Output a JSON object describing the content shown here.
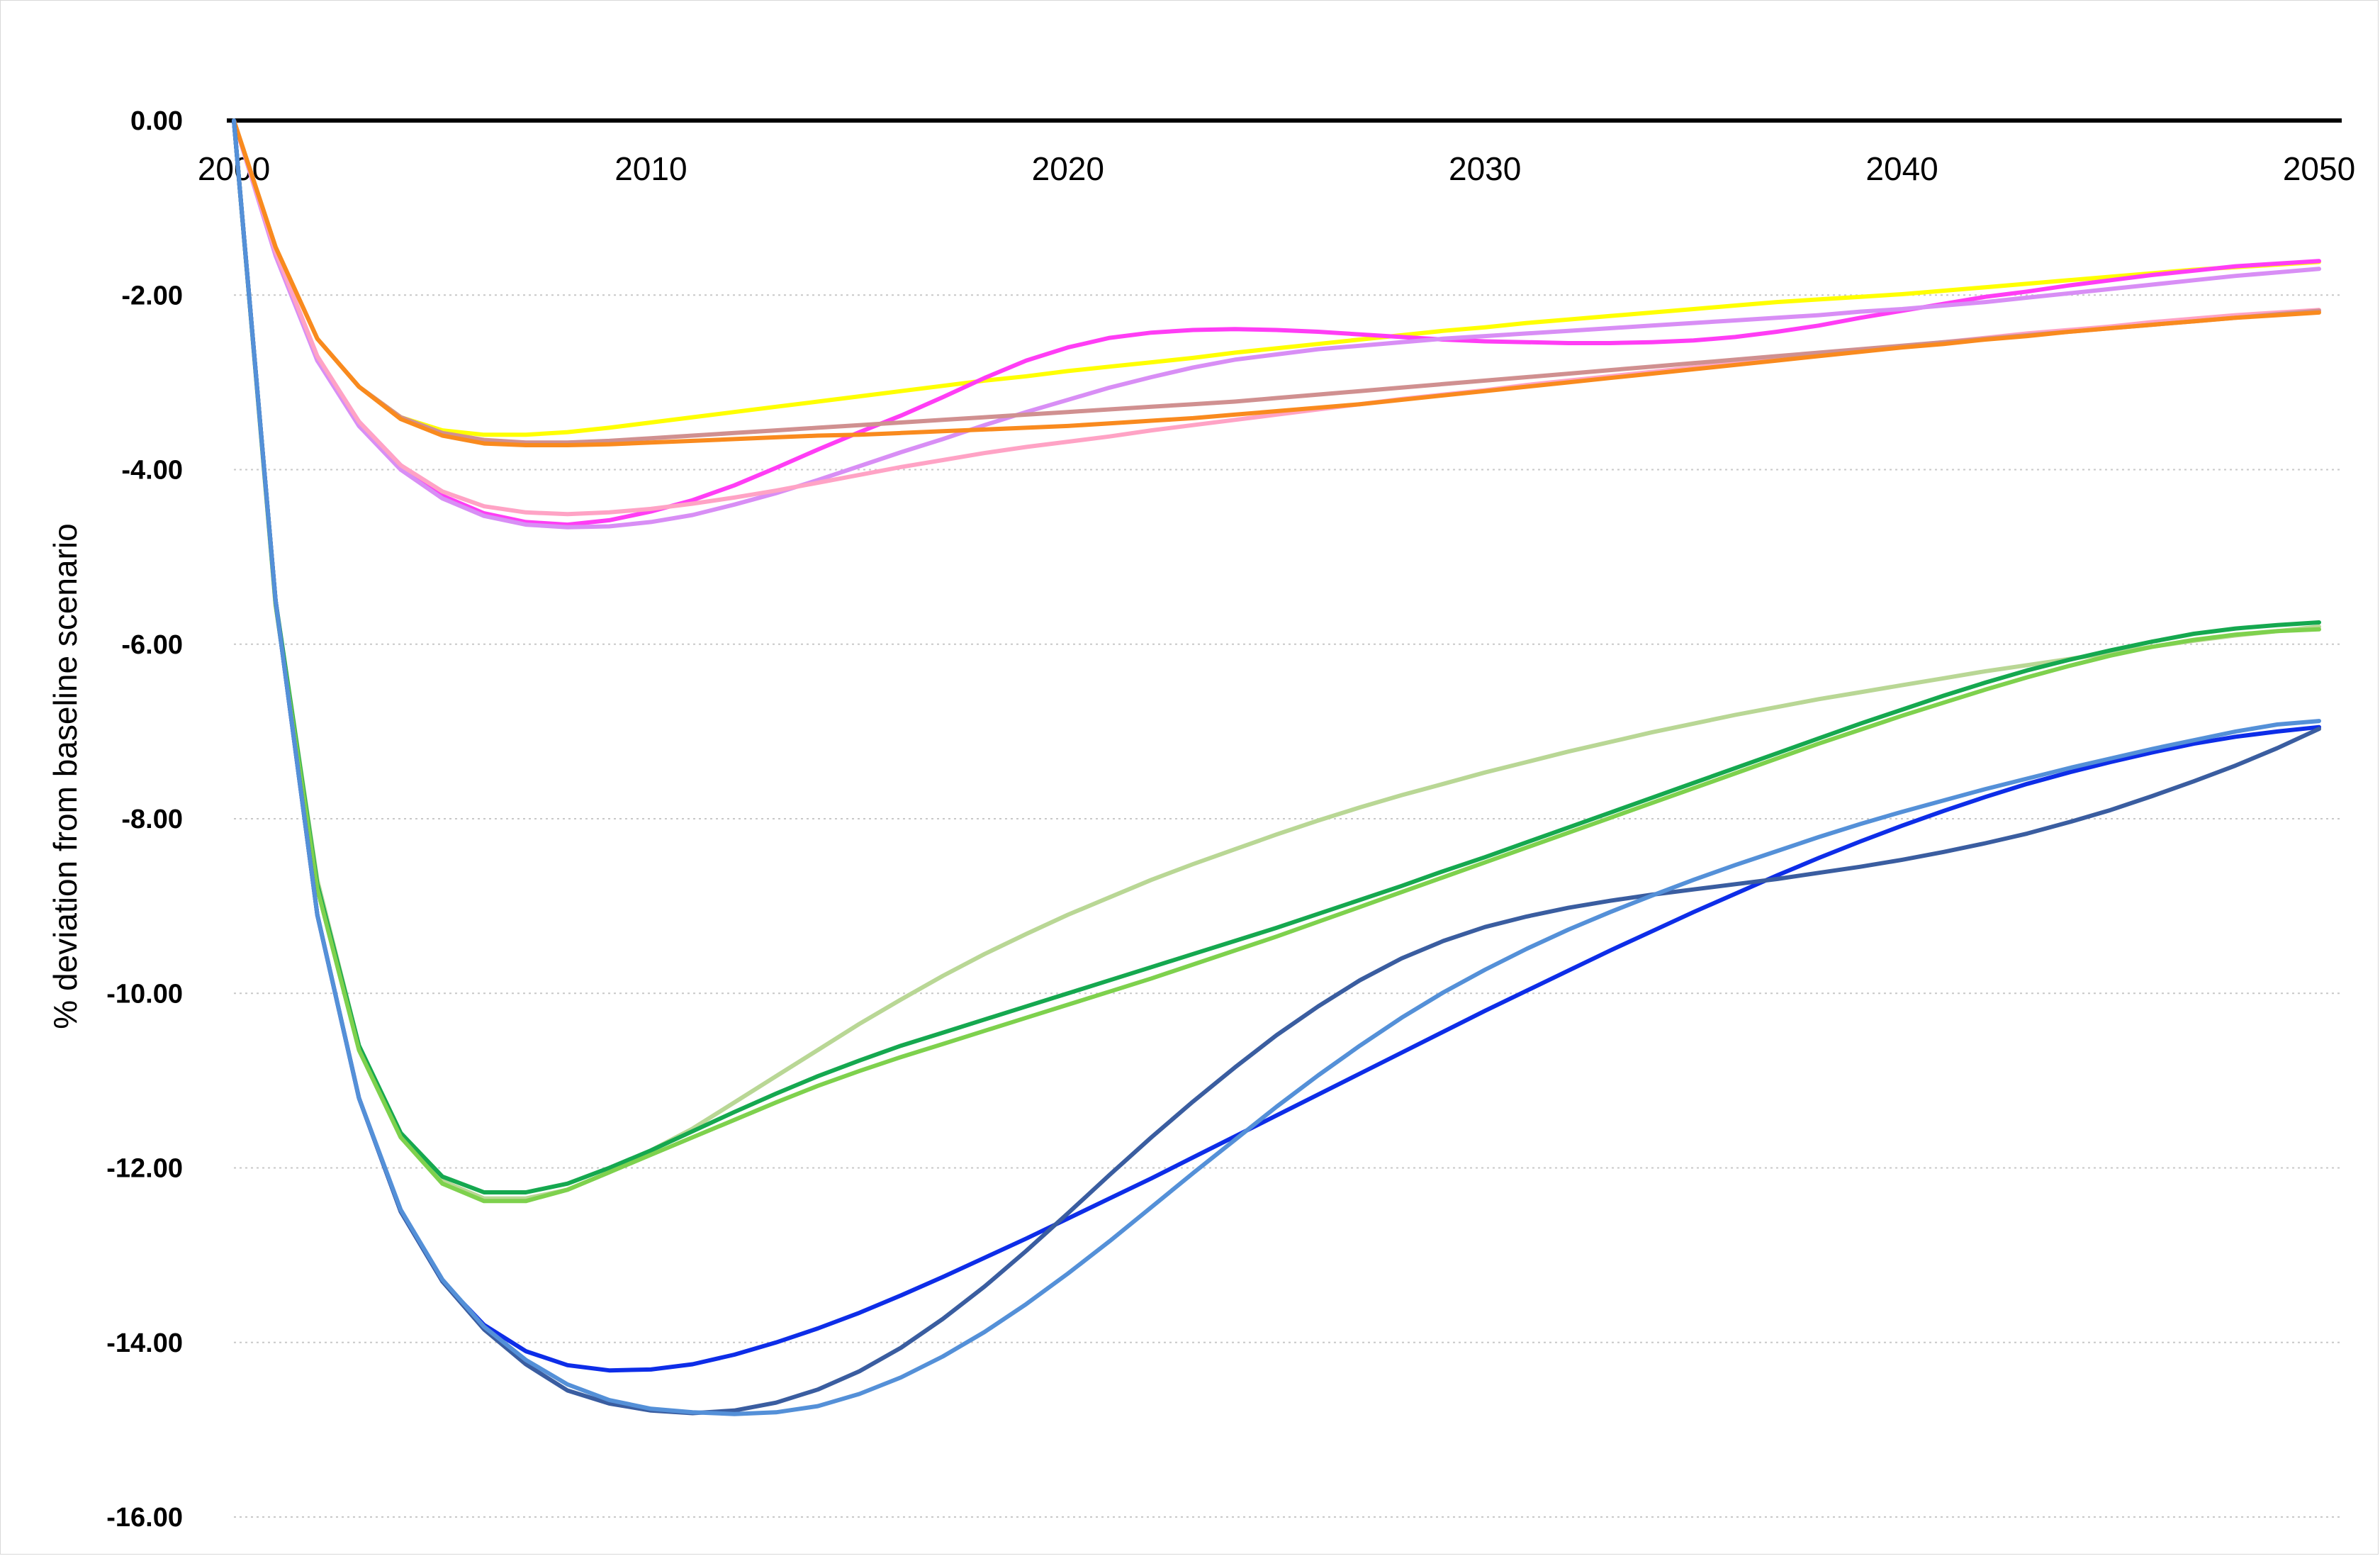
{
  "chart_data": {
    "type": "line",
    "title": "",
    "xlabel": "",
    "ylabel": "% deviation from baseline scenario",
    "xlim": [
      2000,
      2050
    ],
    "ylim": [
      -16,
      0
    ],
    "x_ticks": [
      "2000",
      "2010",
      "2020",
      "2030",
      "2040",
      "2050"
    ],
    "y_ticks": [
      "0.00",
      "-2.00",
      "-4.00",
      "-6.00",
      "-8.00",
      "-10.00",
      "-12.00",
      "-14.00",
      "-16.00"
    ],
    "grid": "horizontal dotted",
    "legend": "none",
    "x": [
      2000,
      2001,
      2002,
      2003,
      2004,
      2005,
      2006,
      2007,
      2008,
      2009,
      2010,
      2011,
      2012,
      2013,
      2014,
      2015,
      2016,
      2017,
      2018,
      2019,
      2020,
      2021,
      2022,
      2023,
      2024,
      2025,
      2026,
      2027,
      2028,
      2029,
      2030,
      2031,
      2032,
      2033,
      2034,
      2035,
      2036,
      2037,
      2038,
      2039,
      2040,
      2041,
      2042,
      2043,
      2044,
      2045,
      2046,
      2047,
      2048,
      2049,
      2050
    ],
    "series": [
      {
        "color": "#FFFF00",
        "values": [
          0.0,
          -1.45,
          -2.5,
          -3.05,
          -3.4,
          -3.55,
          -3.6,
          -3.6,
          -3.57,
          -3.52,
          -3.46,
          -3.4,
          -3.34,
          -3.28,
          -3.22,
          -3.16,
          -3.1,
          -3.04,
          -2.98,
          -2.93,
          -2.87,
          -2.82,
          -2.77,
          -2.72,
          -2.66,
          -2.61,
          -2.56,
          -2.51,
          -2.46,
          -2.41,
          -2.37,
          -2.32,
          -2.28,
          -2.24,
          -2.2,
          -2.16,
          -2.12,
          -2.08,
          -2.05,
          -2.02,
          -1.99,
          -1.95,
          -1.91,
          -1.87,
          -1.83,
          -1.79,
          -1.75,
          -1.71,
          -1.68,
          -1.65,
          -1.62
        ]
      },
      {
        "color": "#FF3DF5",
        "values": [
          0.0,
          -1.5,
          -2.75,
          -3.45,
          -3.95,
          -4.3,
          -4.5,
          -4.6,
          -4.63,
          -4.58,
          -4.48,
          -4.35,
          -4.18,
          -3.98,
          -3.77,
          -3.57,
          -3.38,
          -3.17,
          -2.95,
          -2.75,
          -2.6,
          -2.49,
          -2.43,
          -2.4,
          -2.39,
          -2.4,
          -2.42,
          -2.45,
          -2.48,
          -2.51,
          -2.53,
          -2.54,
          -2.55,
          -2.55,
          -2.54,
          -2.52,
          -2.48,
          -2.42,
          -2.35,
          -2.26,
          -2.18,
          -2.1,
          -2.02,
          -1.96,
          -1.89,
          -1.83,
          -1.77,
          -1.72,
          -1.67,
          -1.64,
          -1.61
        ]
      },
      {
        "color": "#D88EF5",
        "values": [
          0.0,
          -1.55,
          -2.75,
          -3.5,
          -4.0,
          -4.33,
          -4.53,
          -4.63,
          -4.66,
          -4.65,
          -4.6,
          -4.52,
          -4.4,
          -4.27,
          -4.12,
          -3.96,
          -3.8,
          -3.65,
          -3.49,
          -3.34,
          -3.2,
          -3.06,
          -2.94,
          -2.83,
          -2.74,
          -2.68,
          -2.62,
          -2.58,
          -2.54,
          -2.5,
          -2.47,
          -2.44,
          -2.41,
          -2.38,
          -2.35,
          -2.32,
          -2.29,
          -2.26,
          -2.23,
          -2.19,
          -2.16,
          -2.12,
          -2.08,
          -2.03,
          -1.98,
          -1.93,
          -1.88,
          -1.83,
          -1.78,
          -1.74,
          -1.7
        ]
      },
      {
        "color": "#FFA3C5",
        "values": [
          0.0,
          -1.5,
          -2.7,
          -3.45,
          -3.95,
          -4.25,
          -4.42,
          -4.49,
          -4.51,
          -4.49,
          -4.45,
          -4.39,
          -4.32,
          -4.24,
          -4.15,
          -4.06,
          -3.97,
          -3.89,
          -3.81,
          -3.74,
          -3.68,
          -3.62,
          -3.55,
          -3.49,
          -3.43,
          -3.37,
          -3.31,
          -3.25,
          -3.19,
          -3.14,
          -3.09,
          -3.03,
          -2.98,
          -2.93,
          -2.88,
          -2.83,
          -2.78,
          -2.73,
          -2.68,
          -2.63,
          -2.59,
          -2.54,
          -2.49,
          -2.44,
          -2.4,
          -2.36,
          -2.31,
          -2.27,
          -2.23,
          -2.2,
          -2.17
        ]
      },
      {
        "color": "#D09090",
        "values": [
          0.0,
          -1.45,
          -2.5,
          -3.05,
          -3.4,
          -3.58,
          -3.66,
          -3.69,
          -3.69,
          -3.67,
          -3.64,
          -3.61,
          -3.58,
          -3.55,
          -3.52,
          -3.49,
          -3.46,
          -3.43,
          -3.4,
          -3.37,
          -3.34,
          -3.31,
          -3.28,
          -3.25,
          -3.22,
          -3.18,
          -3.14,
          -3.1,
          -3.06,
          -3.02,
          -2.98,
          -2.94,
          -2.9,
          -2.86,
          -2.82,
          -2.78,
          -2.74,
          -2.7,
          -2.66,
          -2.62,
          -2.58,
          -2.54,
          -2.5,
          -2.46,
          -2.42,
          -2.38,
          -2.34,
          -2.3,
          -2.26,
          -2.22,
          -2.18
        ]
      },
      {
        "color": "#F98A1E",
        "values": [
          0.0,
          -1.45,
          -2.5,
          -3.05,
          -3.42,
          -3.61,
          -3.7,
          -3.72,
          -3.72,
          -3.71,
          -3.69,
          -3.67,
          -3.65,
          -3.63,
          -3.61,
          -3.6,
          -3.58,
          -3.56,
          -3.54,
          -3.52,
          -3.5,
          -3.47,
          -3.44,
          -3.41,
          -3.37,
          -3.33,
          -3.29,
          -3.25,
          -3.2,
          -3.15,
          -3.1,
          -3.05,
          -3.0,
          -2.95,
          -2.9,
          -2.85,
          -2.8,
          -2.75,
          -2.7,
          -2.65,
          -2.6,
          -2.56,
          -2.51,
          -2.47,
          -2.42,
          -2.38,
          -2.34,
          -2.3,
          -2.26,
          -2.23,
          -2.2
        ]
      },
      {
        "color": "#B9D795",
        "values": [
          0.0,
          -5.5,
          -8.7,
          -10.6,
          -11.6,
          -12.15,
          -12.35,
          -12.35,
          -12.25,
          -12.05,
          -11.8,
          -11.55,
          -11.25,
          -10.95,
          -10.65,
          -10.35,
          -10.07,
          -9.8,
          -9.55,
          -9.32,
          -9.1,
          -8.9,
          -8.7,
          -8.52,
          -8.35,
          -8.18,
          -8.02,
          -7.87,
          -7.73,
          -7.6,
          -7.47,
          -7.35,
          -7.23,
          -7.12,
          -7.01,
          -6.91,
          -6.81,
          -6.72,
          -6.63,
          -6.55,
          -6.47,
          -6.39,
          -6.31,
          -6.24,
          -6.17,
          -6.1,
          -6.03,
          -5.96,
          -5.9,
          -5.85,
          -5.8
        ]
      },
      {
        "color": "#15A84F",
        "values": [
          0.0,
          -5.5,
          -8.75,
          -10.6,
          -11.6,
          -12.1,
          -12.28,
          -12.28,
          -12.18,
          -12.0,
          -11.8,
          -11.58,
          -11.36,
          -11.15,
          -10.95,
          -10.77,
          -10.6,
          -10.45,
          -10.3,
          -10.15,
          -10.0,
          -9.85,
          -9.7,
          -9.55,
          -9.4,
          -9.25,
          -9.09,
          -8.93,
          -8.77,
          -8.6,
          -8.44,
          -8.27,
          -8.1,
          -7.93,
          -7.76,
          -7.59,
          -7.42,
          -7.25,
          -7.08,
          -6.91,
          -6.75,
          -6.59,
          -6.44,
          -6.3,
          -6.18,
          -6.07,
          -5.97,
          -5.88,
          -5.82,
          -5.78,
          -5.75
        ]
      },
      {
        "color": "#7ED14D",
        "values": [
          0.0,
          -5.55,
          -8.8,
          -10.65,
          -11.65,
          -12.18,
          -12.38,
          -12.38,
          -12.25,
          -12.05,
          -11.85,
          -11.65,
          -11.45,
          -11.25,
          -11.06,
          -10.89,
          -10.73,
          -10.58,
          -10.43,
          -10.28,
          -10.13,
          -9.98,
          -9.83,
          -9.67,
          -9.51,
          -9.35,
          -9.18,
          -9.01,
          -8.84,
          -8.67,
          -8.5,
          -8.33,
          -8.16,
          -7.99,
          -7.82,
          -7.65,
          -7.48,
          -7.31,
          -7.14,
          -6.98,
          -6.82,
          -6.67,
          -6.52,
          -6.38,
          -6.25,
          -6.13,
          -6.03,
          -5.95,
          -5.89,
          -5.85,
          -5.83
        ]
      },
      {
        "color": "#0D2DE8",
        "values": [
          0.0,
          -5.5,
          -9.1,
          -11.2,
          -12.5,
          -13.3,
          -13.8,
          -14.1,
          -14.26,
          -14.32,
          -14.31,
          -14.25,
          -14.14,
          -14.0,
          -13.84,
          -13.66,
          -13.46,
          -13.25,
          -13.03,
          -12.81,
          -12.58,
          -12.35,
          -12.12,
          -11.88,
          -11.64,
          -11.4,
          -11.16,
          -10.92,
          -10.68,
          -10.44,
          -10.2,
          -9.97,
          -9.74,
          -9.51,
          -9.29,
          -9.07,
          -8.86,
          -8.65,
          -8.45,
          -8.26,
          -8.08,
          -7.91,
          -7.75,
          -7.6,
          -7.47,
          -7.35,
          -7.24,
          -7.14,
          -7.06,
          -7.0,
          -6.95
        ]
      },
      {
        "color": "#3A5DA0",
        "values": [
          0.0,
          -5.5,
          -9.1,
          -11.2,
          -12.5,
          -13.3,
          -13.85,
          -14.25,
          -14.55,
          -14.7,
          -14.78,
          -14.81,
          -14.78,
          -14.69,
          -14.54,
          -14.33,
          -14.06,
          -13.73,
          -13.36,
          -12.95,
          -12.52,
          -12.08,
          -11.65,
          -11.24,
          -10.85,
          -10.48,
          -10.15,
          -9.85,
          -9.6,
          -9.4,
          -9.24,
          -9.12,
          -9.02,
          -8.94,
          -8.87,
          -8.81,
          -8.75,
          -8.69,
          -8.62,
          -8.55,
          -8.47,
          -8.38,
          -8.28,
          -8.17,
          -8.04,
          -7.9,
          -7.74,
          -7.57,
          -7.39,
          -7.19,
          -6.97
        ]
      },
      {
        "color": "#5490D8",
        "values": [
          0.0,
          -5.5,
          -9.1,
          -11.2,
          -12.48,
          -13.28,
          -13.82,
          -14.2,
          -14.48,
          -14.66,
          -14.76,
          -14.8,
          -14.82,
          -14.8,
          -14.73,
          -14.59,
          -14.4,
          -14.16,
          -13.88,
          -13.56,
          -13.21,
          -12.84,
          -12.45,
          -12.06,
          -11.68,
          -11.3,
          -10.94,
          -10.6,
          -10.28,
          -9.99,
          -9.73,
          -9.49,
          -9.27,
          -9.07,
          -8.88,
          -8.7,
          -8.53,
          -8.37,
          -8.21,
          -8.06,
          -7.92,
          -7.79,
          -7.66,
          -7.54,
          -7.42,
          -7.31,
          -7.2,
          -7.1,
          -7.0,
          -6.92,
          -6.88
        ]
      }
    ]
  }
}
